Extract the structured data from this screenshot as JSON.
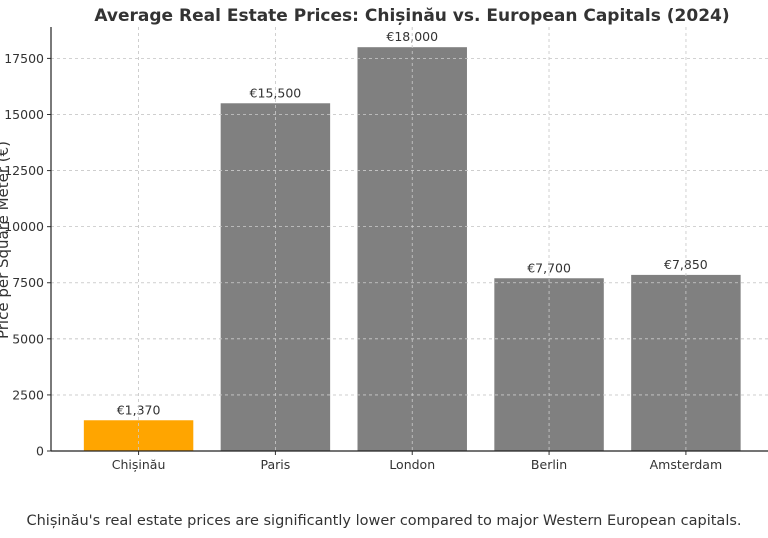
{
  "chart_data": {
    "type": "bar",
    "title": "Average Real Estate Prices: Chișinău vs. European Capitals (2024)",
    "xlabel": "",
    "ylabel": "Price per Square Meter (€)",
    "categories": [
      "Chișinău",
      "Paris",
      "London",
      "Berlin",
      "Amsterdam"
    ],
    "values": [
      1370,
      15500,
      18000,
      7700,
      7850
    ],
    "data_labels": [
      "€1,370",
      "€15,500",
      "€18,000",
      "€7,700",
      "€7,850"
    ],
    "colors": [
      "#FFA500",
      "#808080",
      "#808080",
      "#808080",
      "#808080"
    ],
    "ylim": [
      0,
      18900
    ],
    "yticks": [
      0,
      2500,
      5000,
      7500,
      10000,
      12500,
      15000,
      17500
    ],
    "grid": true
  },
  "footnote": "Chișinău's real estate prices are significantly lower compared to major Western European capitals."
}
